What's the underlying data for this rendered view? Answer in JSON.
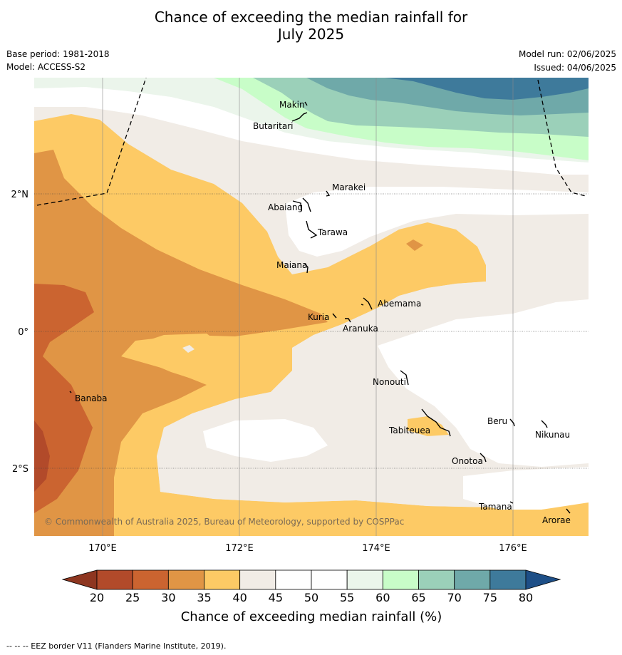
{
  "header": {
    "title_line1": "Chance of exceeding the median rainfall for",
    "title_line2": "July 2025",
    "base_period": "Base period: 1981-2018",
    "model": "Model: ACCESS-S2",
    "model_run": "Model run: 02/06/2025",
    "issued": "Issued: 04/06/2025"
  },
  "map": {
    "x_ticks": [
      "170°E",
      "172°E",
      "174°E",
      "176°E"
    ],
    "y_ticks": [
      "2°N",
      "0°",
      "2°S"
    ],
    "copyright": "© Commonwealth of Australia 2025, Bureau of Meteorology, supported by COSPPac",
    "places": [
      "Makin",
      "Butaritari",
      "Marakei",
      "Abaiang",
      "Tarawa",
      "Maiana",
      "Abemama",
      "Kuria",
      "Aranuka",
      "Nonouti",
      "Banaba",
      "Tabiteuea",
      "Beru",
      "Nikunau",
      "Onotoa",
      "Tamana",
      "Arorae"
    ]
  },
  "colorbar": {
    "ticks": [
      "20",
      "25",
      "30",
      "35",
      "40",
      "45",
      "50",
      "55",
      "60",
      "65",
      "70",
      "75",
      "80"
    ],
    "label": "Chance of exceeding median rainfall (%)",
    "colors": [
      "#b24a2a",
      "#cb6430",
      "#e09545",
      "#fdca65",
      "#f1ece6",
      "#ffffff",
      "#ffffff",
      "#ebf5eb",
      "#c8fdc8",
      "#9bd0b9",
      "#6fa9a9",
      "#3e7a9b"
    ],
    "under_color": "#8e3620",
    "over_color": "#1e4f87"
  },
  "footer": {
    "eez_note": "--  --  -- EEZ border V11 (Flanders Marine Institute, 2019)."
  }
}
